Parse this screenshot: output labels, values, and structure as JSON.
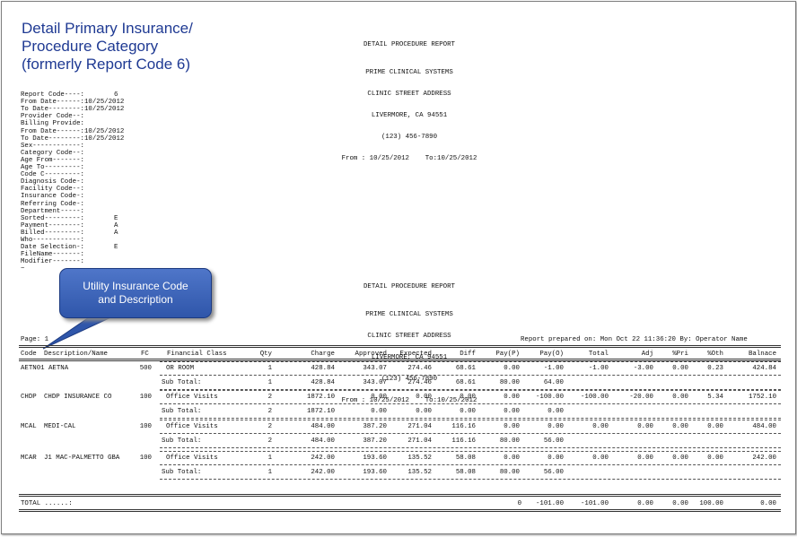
{
  "title_lines": [
    "Detail Primary Insurance/",
    "Procedure Category",
    "(formerly Report Code 6)"
  ],
  "report_header": {
    "name": "DETAIL PROCEDURE REPORT",
    "company": "PRIME CLINICAL SYSTEMS",
    "address1": "CLINIC STREET ADDRESS",
    "address2": "LIVERMORE, CA 94551",
    "phone": "(123) 456-7890",
    "range": "From : 10/25/2012    To:10/25/2012"
  },
  "parameters": [
    {
      "label": "Report Code----:",
      "value": "6"
    },
    {
      "label": "From Date------:10/25/2012",
      "value": ""
    },
    {
      "label": "To Date--------:10/25/2012",
      "value": ""
    },
    {
      "label": "Provider Code--:",
      "value": ""
    },
    {
      "label": "Billing Provide:",
      "value": ""
    },
    {
      "label": "From Date------:10/25/2012",
      "value": ""
    },
    {
      "label": "To Date--------:10/25/2012",
      "value": ""
    },
    {
      "label": "Sex------------:",
      "value": ""
    },
    {
      "label": "Category Code--:",
      "value": ""
    },
    {
      "label": "Age From-------:",
      "value": ""
    },
    {
      "label": "Age To---------:",
      "value": ""
    },
    {
      "label": "Code C---------:",
      "value": ""
    },
    {
      "label": "Diagnosis Code-:",
      "value": ""
    },
    {
      "label": "Facility Code--:",
      "value": ""
    },
    {
      "label": "Insurance Code-:",
      "value": ""
    },
    {
      "label": "Referring Code-:",
      "value": ""
    },
    {
      "label": "Department-----:",
      "value": ""
    },
    {
      "label": "Sorted---------:",
      "value": "E"
    },
    {
      "label": "Payment--------:",
      "value": "A"
    },
    {
      "label": "Billed---------:",
      "value": "A"
    },
    {
      "label": "Who------------:",
      "value": ""
    },
    {
      "label": "Date Selection-:",
      "value": "E"
    },
    {
      "label": "FileName-------:",
      "value": ""
    },
    {
      "label": "Modifier-------:",
      "value": ""
    },
    {
      "label": "~",
      "value": ""
    }
  ],
  "callout": {
    "line1": "Utility Insurance Code",
    "line2": "and Description"
  },
  "page_label": "Page: 1",
  "prepared": "Report prepared on: Mon Oct 22 11:36:20 By: Operator Name",
  "columns": [
    "Code",
    "Description/Name",
    "FC",
    "Financial Class",
    "Qty",
    "Charge",
    "Approved",
    "Expected",
    "Diff",
    "Pay(P)",
    "Pay(O)",
    "Total",
    "Adj",
    "%Pri",
    "%Oth",
    "Balnace"
  ],
  "groups": [
    {
      "code": "AETN01",
      "name": "AETNA",
      "fc": "500",
      "detail": [
        "OR ROOM",
        "1",
        "428.84",
        "343.07",
        "274.46",
        "68.61",
        "0.00",
        "-1.00",
        "-1.00",
        "-3.00",
        "0.00",
        "0.23",
        "424.84"
      ],
      "subtotal": [
        "Sub Total:",
        "1",
        "428.84",
        "343.07",
        "274.46",
        "68.61",
        "80.00",
        "64.00"
      ]
    },
    {
      "code": "CHDP",
      "name": "CHDP INSURANCE CO",
      "fc": "100",
      "detail": [
        "Office Visits",
        "2",
        "1872.10",
        "0.00",
        "0.00",
        "0.00",
        "0.00",
        "-100.00",
        "-100.00",
        "-20.00",
        "0.00",
        "5.34",
        "1752.10"
      ],
      "subtotal": [
        "Sub Total:",
        "2",
        "1872.10",
        "0.00",
        "0.00",
        "0.00",
        "0.00",
        "0.00"
      ]
    },
    {
      "code": "MCAL",
      "name": "MEDI-CAL",
      "fc": "100",
      "detail": [
        "Office Visits",
        "2",
        "484.00",
        "387.20",
        "271.04",
        "116.16",
        "0.00",
        "0.00",
        "0.00",
        "0.00",
        "0.00",
        "0.00",
        "484.00"
      ],
      "subtotal": [
        "Sub Total:",
        "2",
        "484.00",
        "387.20",
        "271.04",
        "116.16",
        "80.00",
        "56.00"
      ]
    },
    {
      "code": "MCAR",
      "name": "J1 MAC-PALMETTO GBA",
      "fc": "100",
      "detail": [
        "Office Visits",
        "1",
        "242.00",
        "193.60",
        "135.52",
        "58.08",
        "0.00",
        "0.00",
        "0.00",
        "0.00",
        "0.00",
        "0.00",
        "242.00"
      ],
      "subtotal": [
        "Sub Total:",
        "1",
        "242.00",
        "193.60",
        "135.52",
        "58.08",
        "80.00",
        "56.00"
      ]
    }
  ],
  "total": {
    "label": "TOTAL ......:",
    "values": [
      "0",
      "-101.00",
      "-101.00",
      "0.00",
      "0.00",
      "100.00",
      "0.00"
    ]
  }
}
